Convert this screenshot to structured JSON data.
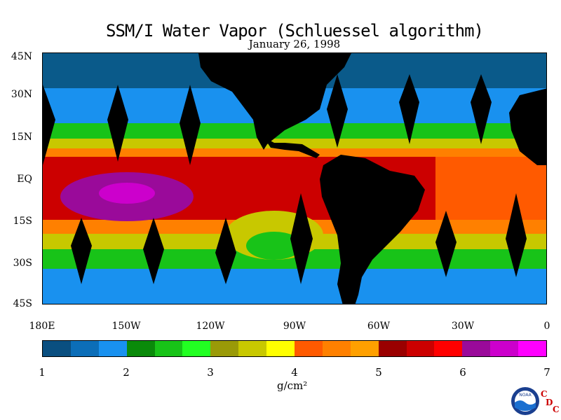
{
  "title": "SSM/I Water Vapor (Schluessel algorithm)",
  "date": "January 26, 1998",
  "lat_labels": [
    "45N",
    "30N",
    "15N",
    "EQ",
    "15S",
    "30S",
    "45S"
  ],
  "lon_labels": [
    "180E",
    "150W",
    "120W",
    "90W",
    "60W",
    "30W",
    "0"
  ],
  "colorbar": {
    "ticks": [
      "1",
      "2",
      "3",
      "4",
      "5",
      "6",
      "7"
    ],
    "units": "g/cm²",
    "colors": [
      "#0a4f80",
      "#0c6eb8",
      "#1991ef",
      "#0a8a0a",
      "#18c318",
      "#22ff22",
      "#9a9a08",
      "#c8c800",
      "#ffff00",
      "#ff5a00",
      "#ff8000",
      "#ffa000",
      "#9a0000",
      "#cc0000",
      "#ff0000",
      "#9a0a9a",
      "#cc00cc",
      "#ff00ff"
    ]
  },
  "logo": {
    "label": "NOAA",
    "org_letters": [
      "C",
      "D",
      "C"
    ]
  }
}
